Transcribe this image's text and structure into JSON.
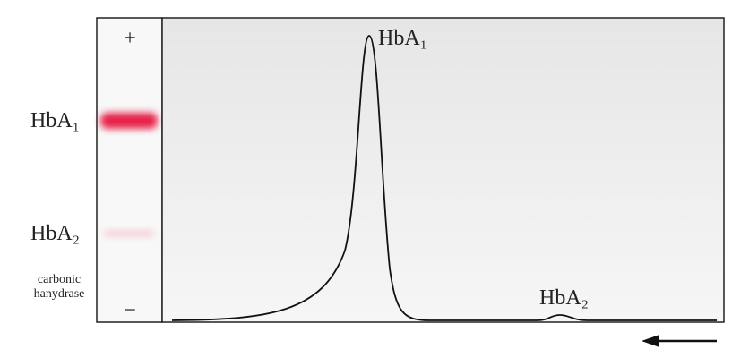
{
  "strip": {
    "plus": "+",
    "minus": "−",
    "bands": [
      {
        "label": "HbA₁"
      },
      {
        "label": "HbA₂"
      },
      {
        "lines": [
          "carbonic",
          "hanydrase"
        ]
      }
    ]
  },
  "trace": {
    "peaks": [
      {
        "label": "HbA₁"
      },
      {
        "label": "HbA₂"
      }
    ]
  }
}
